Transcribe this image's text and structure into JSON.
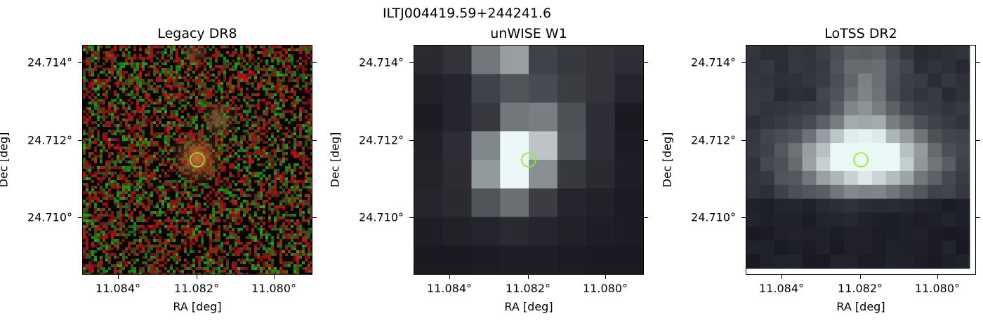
{
  "figure": {
    "title": "ILTJ004419.59+244241.6"
  },
  "panels": [
    {
      "title": "Legacy DR8",
      "xlabel": "RA [deg]",
      "ylabel": "Dec [deg]",
      "xticks": [
        "11.084°",
        "11.082°",
        "11.080°"
      ],
      "yticks": [
        "24.714°",
        "24.712°",
        "24.710°"
      ]
    },
    {
      "title": "unWISE W1",
      "xlabel": "RA [deg]",
      "ylabel": "Dec [deg]",
      "xticks": [
        "11.084°",
        "11.082°",
        "11.080°"
      ],
      "yticks": [
        "24.714°",
        "24.712°",
        "24.710°"
      ]
    },
    {
      "title": "LoTSS DR2",
      "xlabel": "RA [deg]",
      "ylabel": "Dec [deg]",
      "xticks": [
        "11.084°",
        "11.082°",
        "11.080°"
      ],
      "yticks": [
        "24.714°",
        "24.712°",
        "24.710°"
      ]
    }
  ],
  "marker": {
    "color": "#7fff00",
    "shape": "circle"
  },
  "colors": {
    "legacy_noise_red": "#b4141e",
    "legacy_noise_green": "#1e9628",
    "source_glow": "#d26e3c",
    "grayscale_high": "#eaf8f4"
  }
}
